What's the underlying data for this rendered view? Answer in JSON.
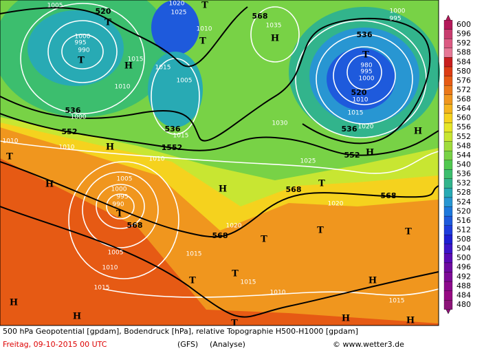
{
  "map_labels": [
    "1005",
    "520",
    "T",
    "1020",
    "1025",
    "T",
    "568",
    "1035",
    "H",
    "1010",
    "T",
    "1000",
    "995",
    "990",
    "T",
    "H",
    "1015",
    "1015",
    "1010",
    "1005",
    "536",
    "1000",
    "552",
    "536",
    "1015",
    "H",
    "1552",
    "1010",
    "1010",
    "T",
    "1010",
    "H",
    "1005",
    "1000",
    "995",
    "990",
    "T",
    "568",
    "H",
    "1020",
    "568",
    "1005",
    "1010",
    "1015",
    "T",
    "T",
    "1015",
    "1015",
    "1010",
    "T",
    "568",
    "T",
    "1030",
    "1025",
    "1020",
    "568",
    "536",
    "T",
    "980",
    "995",
    "1000",
    "520",
    "1010",
    "1015",
    "536",
    "1020",
    "552",
    "H",
    "H",
    "1000",
    "995",
    "T",
    "T",
    "H",
    "1015",
    "H",
    "H",
    "H",
    "H",
    "T"
  ],
  "scale": {
    "values": [
      600,
      596,
      592,
      588,
      584,
      580,
      576,
      572,
      568,
      564,
      560,
      556,
      552,
      548,
      544,
      540,
      536,
      532,
      528,
      524,
      520,
      516,
      512,
      508,
      504,
      500,
      496,
      492,
      488,
      484,
      480
    ],
    "colors": [
      "#b4195a",
      "#c83c6e",
      "#dc5a82",
      "#e67896",
      "#c81e1e",
      "#dc3c14",
      "#e65a14",
      "#eb7819",
      "#f0961e",
      "#f5b41e",
      "#f5d21e",
      "#e6e628",
      "#c8e632",
      "#a0dc3c",
      "#78d246",
      "#50c850",
      "#3cbe6e",
      "#32b48c",
      "#28aab4",
      "#2896d2",
      "#1e78dc",
      "#1e5adc",
      "#1e3cdc",
      "#1e1ed2",
      "#3c14c8",
      "#5a0ab4",
      "#6e0aa0",
      "#7d0a96",
      "#8c0a8c",
      "#960a82",
      "#8c1478"
    ]
  },
  "footer": {
    "line1": "500 hPa Geopotential [gpdam], Bodendruck [hPa], relative Topographie H500-H1000 [gpdam]",
    "date": "Freitag, 09-10-2015  00 UTC",
    "model": "(GFS)",
    "kind": "(Analyse)",
    "source": "© www.wetter3.de"
  }
}
